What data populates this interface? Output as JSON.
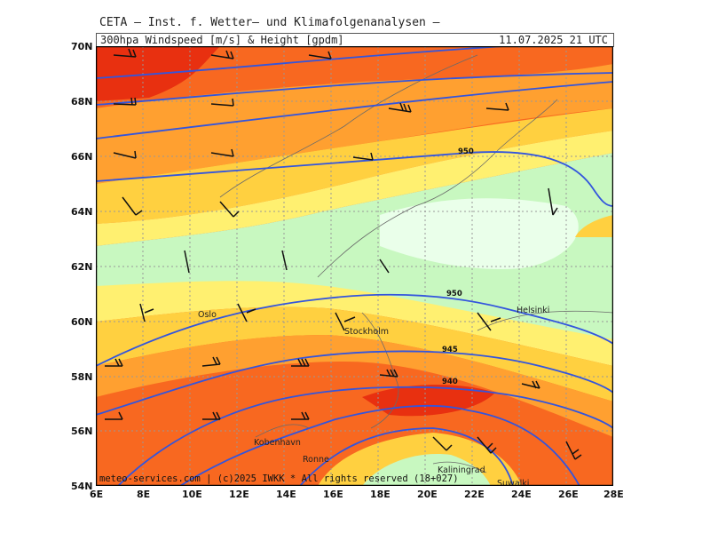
{
  "header": {
    "title": "CETA – Inst. f. Wetter– und Klimafolgenanalysen –",
    "product": "300hpa Windspeed [m/s] & Height [gpdm]",
    "valid_time": "11.07.2025 21 UTC"
  },
  "axes": {
    "lat_labels": [
      "70N",
      "68N",
      "66N",
      "64N",
      "62N",
      "60N",
      "58N",
      "56N",
      "54N"
    ],
    "lon_labels": [
      "6E",
      "8E",
      "10E",
      "12E",
      "14E",
      "16E",
      "18E",
      "20E",
      "22E",
      "24E",
      "26E",
      "28E"
    ]
  },
  "places": [
    "Oslo",
    "Stockholm",
    "Helsinki",
    "Kobenhavn",
    "Ronne",
    "Kaliningrad",
    "Suwalki"
  ],
  "contours": {
    "labels": [
      "950",
      "950",
      "945",
      "940"
    ],
    "color": "#3355dd"
  },
  "colors": {
    "wind_strong": "#e83010",
    "wind_high": "#f86820",
    "wind_med": "#ffa030",
    "wind_mod": "#ffd040",
    "wind_low": "#fff070",
    "wind_calm": "#c8f8c0",
    "wind_calmest": "#eaffea"
  },
  "credit": "meteo-services.com | (c)2025 IWKK * All rights reserved (18+027)"
}
